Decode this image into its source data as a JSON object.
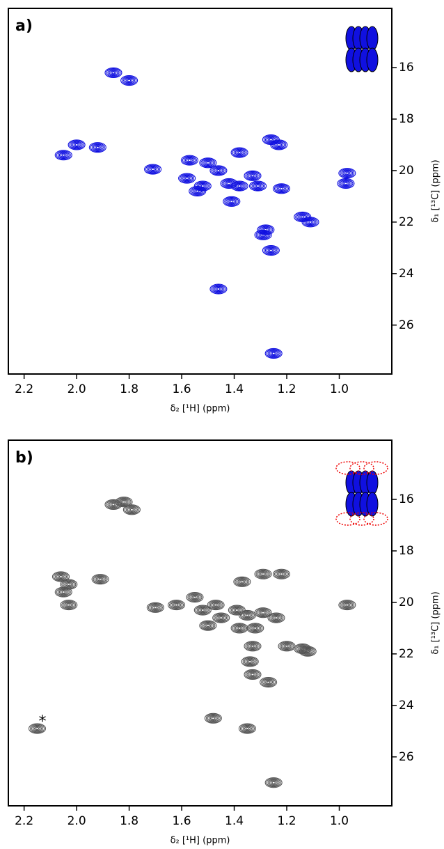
{
  "chart_data": [
    {
      "type": "contour",
      "title": "a)",
      "x_label": "δ₂ [¹H] (ppm)",
      "y_label": "δ₁ [¹³C] (ppm)",
      "color": "#1010e0",
      "x_inverted": true,
      "y_inverted": true,
      "xlim": [
        2.26,
        0.8
      ],
      "ylim": [
        13.7,
        27.9
      ],
      "xticks": [
        2.2,
        {
          "value": 2.0,
          "label": "2.0"
        },
        1.8,
        1.6,
        1.4,
        1.2,
        {
          "value": 1.0,
          "label": "1.0"
        }
      ],
      "yticks": [
        16,
        18,
        20,
        22,
        24,
        26
      ],
      "x": [
        1.86,
        1.8,
        2.05,
        2.0,
        1.92,
        1.71,
        1.57,
        1.5,
        1.46,
        1.58,
        1.52,
        1.54,
        1.41,
        1.42,
        1.38,
        1.33,
        1.31,
        1.38,
        1.26,
        1.23,
        1.22,
        1.14,
        1.11,
        1.28,
        1.29,
        1.26,
        1.46,
        1.25,
        0.97,
        0.975
      ],
      "y": [
        16.2,
        16.5,
        19.4,
        19.0,
        19.1,
        19.95,
        19.6,
        19.7,
        20.0,
        20.3,
        20.6,
        20.8,
        21.2,
        20.5,
        20.6,
        20.2,
        20.6,
        19.3,
        18.8,
        19.0,
        20.7,
        21.8,
        22.0,
        22.3,
        22.5,
        23.1,
        24.6,
        27.1,
        20.1,
        20.5
      ]
    },
    {
      "type": "contour",
      "title": "b)",
      "x_label": "δ₂ [¹H] (ppm)",
      "y_label": "δ₁ [¹³C] (ppm)",
      "color": "#555555",
      "x_inverted": true,
      "y_inverted": true,
      "xlim": [
        2.26,
        0.8
      ],
      "ylim": [
        13.7,
        27.9
      ],
      "xticks": [
        2.2,
        {
          "value": 2.0,
          "label": "2.0"
        },
        1.8,
        1.6,
        1.4,
        1.2,
        {
          "value": 1.0,
          "label": "1.0"
        }
      ],
      "yticks": [
        16,
        18,
        20,
        22,
        24,
        26
      ],
      "annotation": "*",
      "x": [
        1.86,
        1.82,
        1.79,
        2.06,
        2.03,
        2.05,
        2.03,
        1.91,
        1.7,
        1.62,
        1.55,
        1.52,
        1.47,
        1.45,
        1.39,
        1.35,
        1.29,
        1.24,
        1.5,
        1.38,
        1.32,
        1.37,
        1.29,
        1.22,
        1.33,
        1.34,
        1.33,
        1.2,
        1.14,
        1.12,
        1.27,
        1.48,
        1.35,
        1.25,
        0.97,
        2.15
      ],
      "y": [
        16.2,
        16.1,
        16.4,
        19.0,
        19.3,
        19.6,
        20.1,
        19.1,
        20.2,
        20.1,
        19.8,
        20.3,
        20.1,
        20.6,
        20.3,
        20.5,
        20.4,
        20.6,
        20.9,
        21.0,
        21.0,
        19.2,
        18.9,
        18.9,
        21.7,
        22.3,
        22.8,
        21.7,
        21.8,
        21.9,
        23.1,
        24.5,
        24.9,
        27.0,
        20.1,
        24.9
      ]
    }
  ]
}
